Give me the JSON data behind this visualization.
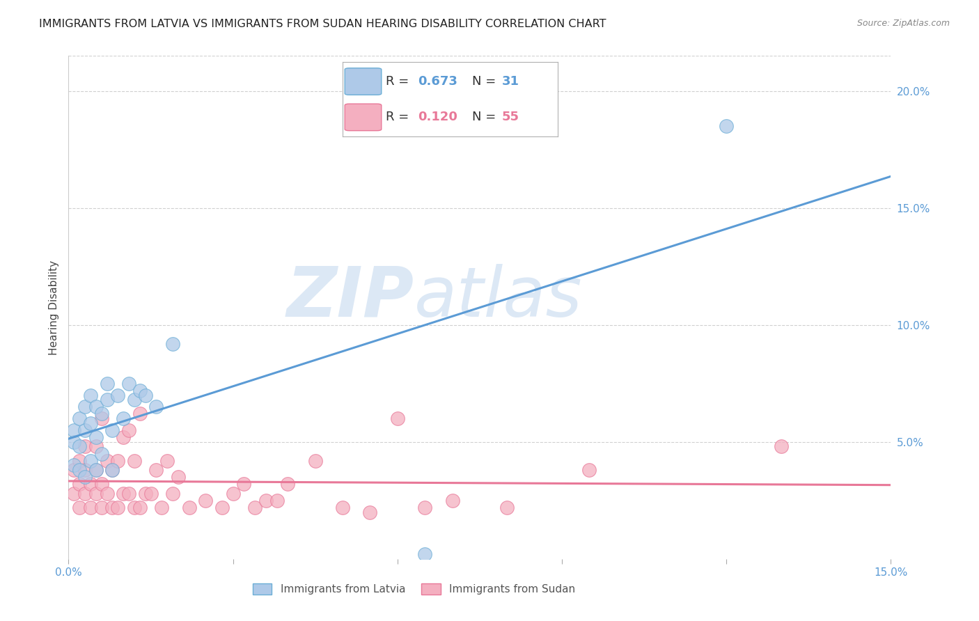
{
  "title": "IMMIGRANTS FROM LATVIA VS IMMIGRANTS FROM SUDAN HEARING DISABILITY CORRELATION CHART",
  "source": "Source: ZipAtlas.com",
  "ylabel": "Hearing Disability",
  "xlim": [
    0.0,
    0.15
  ],
  "ylim": [
    0.0,
    0.215
  ],
  "xticks": [
    0.0,
    0.03,
    0.06,
    0.09,
    0.12,
    0.15
  ],
  "xtick_labels": [
    "0.0%",
    "",
    "",
    "",
    "",
    "15.0%"
  ],
  "ytick_vals": [
    0.05,
    0.1,
    0.15,
    0.2
  ],
  "ytick_labels": [
    "5.0%",
    "10.0%",
    "15.0%",
    "20.0%"
  ],
  "latvia_R": 0.673,
  "latvia_N": 31,
  "sudan_R": 0.12,
  "sudan_N": 55,
  "latvia_color": "#aec9e8",
  "latvia_edge_color": "#6baed6",
  "sudan_color": "#f4afc0",
  "sudan_edge_color": "#e87898",
  "line_latvia_color": "#5b9bd5",
  "line_sudan_color": "#e87898",
  "tick_color": "#5b9bd5",
  "background_color": "#ffffff",
  "grid_color": "#d0d0d0",
  "watermark_color": "#dce8f5",
  "latvia_x": [
    0.001,
    0.001,
    0.001,
    0.002,
    0.002,
    0.002,
    0.003,
    0.003,
    0.003,
    0.004,
    0.004,
    0.004,
    0.005,
    0.005,
    0.005,
    0.006,
    0.006,
    0.007,
    0.007,
    0.008,
    0.008,
    0.009,
    0.01,
    0.011,
    0.012,
    0.013,
    0.014,
    0.016,
    0.019,
    0.065,
    0.12
  ],
  "latvia_y": [
    0.04,
    0.05,
    0.055,
    0.038,
    0.048,
    0.06,
    0.035,
    0.055,
    0.065,
    0.042,
    0.058,
    0.07,
    0.038,
    0.052,
    0.065,
    0.045,
    0.062,
    0.075,
    0.068,
    0.055,
    0.038,
    0.07,
    0.06,
    0.075,
    0.068,
    0.072,
    0.07,
    0.065,
    0.092,
    0.002,
    0.185
  ],
  "sudan_x": [
    0.001,
    0.001,
    0.002,
    0.002,
    0.002,
    0.003,
    0.003,
    0.003,
    0.004,
    0.004,
    0.005,
    0.005,
    0.005,
    0.006,
    0.006,
    0.006,
    0.007,
    0.007,
    0.008,
    0.008,
    0.009,
    0.009,
    0.01,
    0.01,
    0.011,
    0.011,
    0.012,
    0.012,
    0.013,
    0.013,
    0.014,
    0.015,
    0.016,
    0.017,
    0.018,
    0.019,
    0.02,
    0.022,
    0.025,
    0.028,
    0.03,
    0.032,
    0.034,
    0.036,
    0.038,
    0.04,
    0.045,
    0.05,
    0.055,
    0.06,
    0.065,
    0.07,
    0.08,
    0.095,
    0.13
  ],
  "sudan_y": [
    0.028,
    0.038,
    0.022,
    0.032,
    0.042,
    0.028,
    0.038,
    0.048,
    0.022,
    0.032,
    0.028,
    0.038,
    0.048,
    0.022,
    0.032,
    0.06,
    0.028,
    0.042,
    0.022,
    0.038,
    0.022,
    0.042,
    0.028,
    0.052,
    0.028,
    0.055,
    0.022,
    0.042,
    0.022,
    0.062,
    0.028,
    0.028,
    0.038,
    0.022,
    0.042,
    0.028,
    0.035,
    0.022,
    0.025,
    0.022,
    0.028,
    0.032,
    0.022,
    0.025,
    0.025,
    0.032,
    0.042,
    0.022,
    0.02,
    0.06,
    0.022,
    0.025,
    0.022,
    0.038,
    0.048
  ],
  "title_fontsize": 11.5,
  "axis_label_fontsize": 11,
  "tick_fontsize": 11,
  "legend_fontsize": 13
}
